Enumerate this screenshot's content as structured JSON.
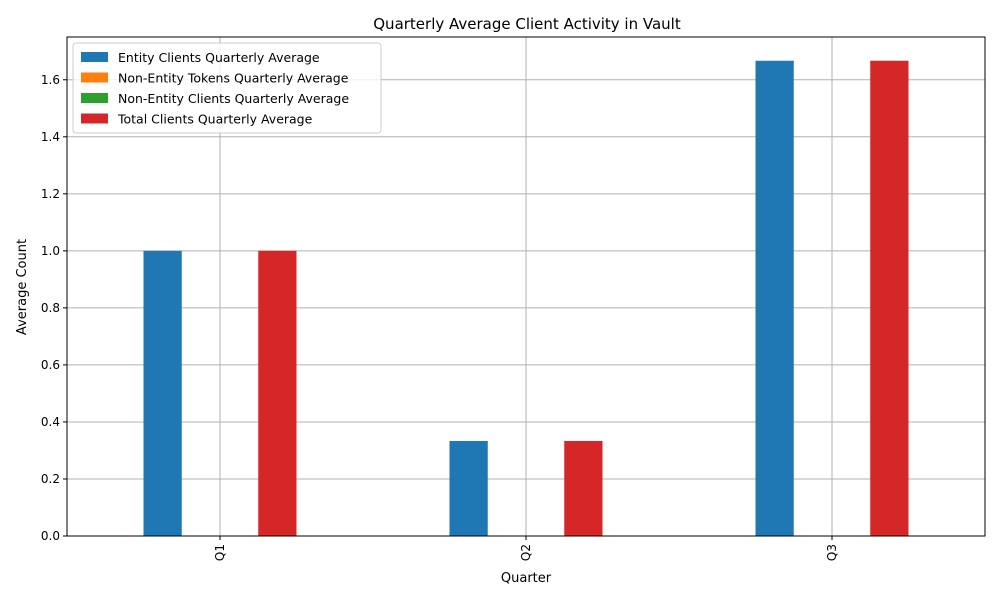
{
  "chart_data": {
    "type": "bar",
    "title": "Quarterly Average Client Activity in Vault",
    "xlabel": "Quarter",
    "ylabel": "Average Count",
    "categories": [
      "Q1",
      "Q2",
      "Q3"
    ],
    "ylim": [
      0,
      1.75
    ],
    "yticks": [
      0.0,
      0.2,
      0.4,
      0.6,
      0.8,
      1.0,
      1.2,
      1.4,
      1.6
    ],
    "ytick_labels": [
      "0.0",
      "0.2",
      "0.4",
      "0.6",
      "0.8",
      "1.0",
      "1.2",
      "1.4",
      "1.6"
    ],
    "grid": true,
    "legend_position": "top-left",
    "series": [
      {
        "name": "Entity Clients Quarterly Average",
        "color": "#1f77b4",
        "values": [
          1.0,
          0.3333,
          1.6667
        ]
      },
      {
        "name": "Non-Entity Tokens Quarterly Average",
        "color": "#ff7f0e",
        "values": [
          0,
          0,
          0
        ]
      },
      {
        "name": "Non-Entity Clients Quarterly Average",
        "color": "#2ca02c",
        "values": [
          0,
          0,
          0
        ]
      },
      {
        "name": "Total Clients Quarterly Average",
        "color": "#d62728",
        "values": [
          1.0,
          0.3333,
          1.6667
        ]
      }
    ]
  }
}
